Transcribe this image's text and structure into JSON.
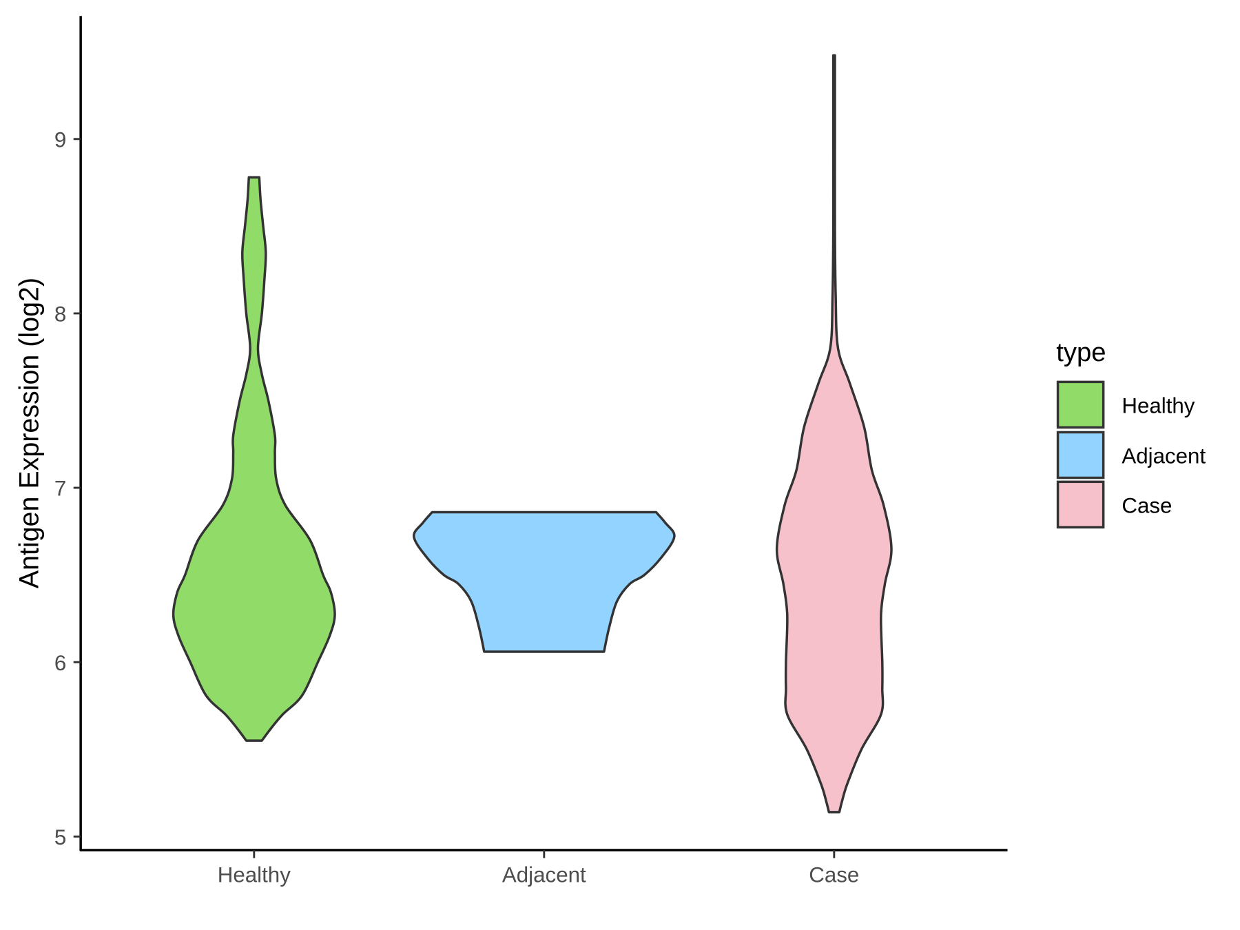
{
  "chart_data": {
    "type": "violin",
    "title": "",
    "xlabel": "",
    "ylabel": "Antigen Expression (log2)",
    "ylim": [
      4.95,
      9.72
    ],
    "yticks": [
      5,
      6,
      7,
      8,
      9
    ],
    "ytick_labels": [
      "5",
      "6",
      "7",
      "8",
      "9"
    ],
    "categories": [
      "Healthy",
      "Adjacent",
      "Case"
    ],
    "grid": false,
    "legend": {
      "title": "type",
      "position": "right",
      "entries": [
        "Healthy",
        "Adjacent",
        "Case"
      ]
    },
    "colors": {
      "Healthy": "#91DB69",
      "Adjacent": "#92D3FF",
      "Case": "#F7C1CC",
      "outline": "#333333"
    },
    "series": [
      {
        "name": "Healthy",
        "min": 5.55,
        "max": 8.78,
        "density_profile": [
          [
            5.55,
            0.06
          ],
          [
            5.62,
            0.13
          ],
          [
            5.7,
            0.22
          ],
          [
            5.81,
            0.37
          ],
          [
            6.0,
            0.49
          ],
          [
            6.15,
            0.58
          ],
          [
            6.27,
            0.62
          ],
          [
            6.4,
            0.59
          ],
          [
            6.5,
            0.53
          ],
          [
            6.7,
            0.43
          ],
          [
            6.9,
            0.24
          ],
          [
            7.05,
            0.17
          ],
          [
            7.2,
            0.16
          ],
          [
            7.3,
            0.16
          ],
          [
            7.5,
            0.11
          ],
          [
            7.65,
            0.06
          ],
          [
            7.8,
            0.03
          ],
          [
            8.0,
            0.06
          ],
          [
            8.2,
            0.08
          ],
          [
            8.35,
            0.09
          ],
          [
            8.5,
            0.07
          ],
          [
            8.65,
            0.05
          ],
          [
            8.78,
            0.04
          ]
        ]
      },
      {
        "name": "Adjacent",
        "min": 6.06,
        "max": 6.86,
        "density_profile": [
          [
            6.06,
            0.46
          ],
          [
            6.2,
            0.5
          ],
          [
            6.35,
            0.56
          ],
          [
            6.45,
            0.66
          ],
          [
            6.5,
            0.77
          ],
          [
            6.6,
            0.9
          ],
          [
            6.72,
            1.0
          ],
          [
            6.8,
            0.93
          ],
          [
            6.86,
            0.86
          ]
        ]
      },
      {
        "name": "Case",
        "min": 5.14,
        "max": 9.48,
        "density_profile": [
          [
            5.14,
            0.04
          ],
          [
            5.2,
            0.06
          ],
          [
            5.3,
            0.1
          ],
          [
            5.5,
            0.21
          ],
          [
            5.7,
            0.36
          ],
          [
            5.85,
            0.37
          ],
          [
            6.0,
            0.37
          ],
          [
            6.27,
            0.36
          ],
          [
            6.45,
            0.39
          ],
          [
            6.65,
            0.44
          ],
          [
            6.9,
            0.38
          ],
          [
            7.1,
            0.29
          ],
          [
            7.35,
            0.23
          ],
          [
            7.6,
            0.12
          ],
          [
            7.8,
            0.03
          ],
          [
            8.1,
            0.012
          ],
          [
            8.5,
            0.006
          ],
          [
            9.0,
            0.006
          ],
          [
            9.48,
            0.006
          ]
        ]
      }
    ]
  }
}
